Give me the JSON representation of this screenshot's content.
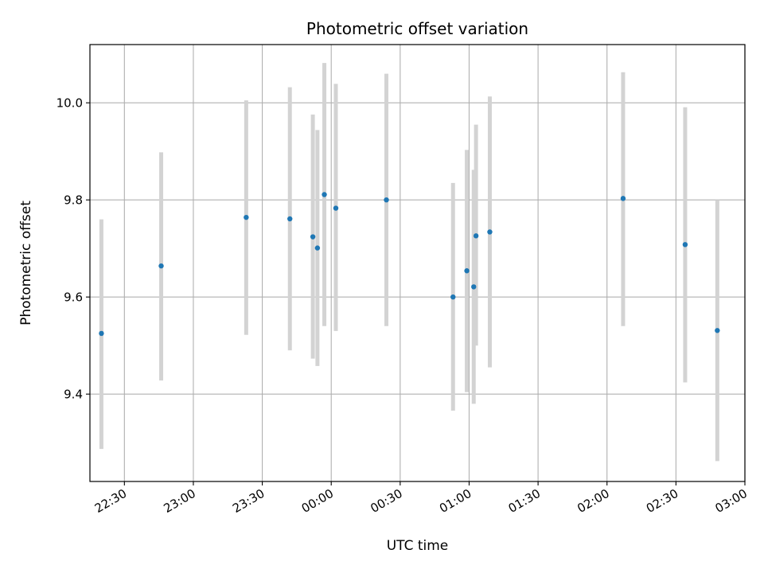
{
  "chart_data": {
    "type": "scatter",
    "title": "Photometric offset variation",
    "xlabel": "UTC time",
    "ylabel": "Photometric offset",
    "xlim": [
      "22:15",
      "03:00"
    ],
    "ylim": [
      9.22,
      10.12
    ],
    "x_ticks": [
      "22:30",
      "23:00",
      "23:30",
      "00:00",
      "00:30",
      "01:00",
      "01:30",
      "02:00",
      "02:30",
      "03:00"
    ],
    "y_ticks": [
      9.4,
      9.6,
      9.8,
      10.0
    ],
    "y_tick_labels": [
      "9.4",
      "9.6",
      "9.8",
      "10.0"
    ],
    "grid": true,
    "errorbar_color": "#d3d3d3",
    "point_color": "#1f77b4",
    "points": [
      {
        "x": "22:20",
        "y": 9.525,
        "err_low": 9.287,
        "err_high": 9.76
      },
      {
        "x": "22:46",
        "y": 9.664,
        "err_low": 9.428,
        "err_high": 9.898
      },
      {
        "x": "23:23",
        "y": 9.764,
        "err_low": 9.522,
        "err_high": 10.005
      },
      {
        "x": "23:42",
        "y": 9.761,
        "err_low": 9.49,
        "err_high": 10.032
      },
      {
        "x": "23:52",
        "y": 9.724,
        "err_low": 9.473,
        "err_high": 9.976
      },
      {
        "x": "23:54",
        "y": 9.701,
        "err_low": 9.458,
        "err_high": 9.944
      },
      {
        "x": "23:57",
        "y": 9.811,
        "err_low": 9.54,
        "err_high": 10.082
      },
      {
        "x": "00:02",
        "y": 9.783,
        "err_low": 9.53,
        "err_high": 10.039
      },
      {
        "x": "00:24",
        "y": 9.8,
        "err_low": 9.54,
        "err_high": 10.06
      },
      {
        "x": "00:53",
        "y": 9.6,
        "err_low": 9.366,
        "err_high": 9.835
      },
      {
        "x": "00:59",
        "y": 9.654,
        "err_low": 9.404,
        "err_high": 9.903
      },
      {
        "x": "01:02",
        "y": 9.621,
        "err_low": 9.38,
        "err_high": 9.862
      },
      {
        "x": "01:03",
        "y": 9.726,
        "err_low": 9.5,
        "err_high": 9.955
      },
      {
        "x": "01:09",
        "y": 9.734,
        "err_low": 9.455,
        "err_high": 10.013
      },
      {
        "x": "02:07",
        "y": 9.803,
        "err_low": 9.54,
        "err_high": 10.063
      },
      {
        "x": "02:34",
        "y": 9.708,
        "err_low": 9.424,
        "err_high": 9.991
      },
      {
        "x": "02:48",
        "y": 9.531,
        "err_low": 9.262,
        "err_high": 9.8
      }
    ]
  }
}
